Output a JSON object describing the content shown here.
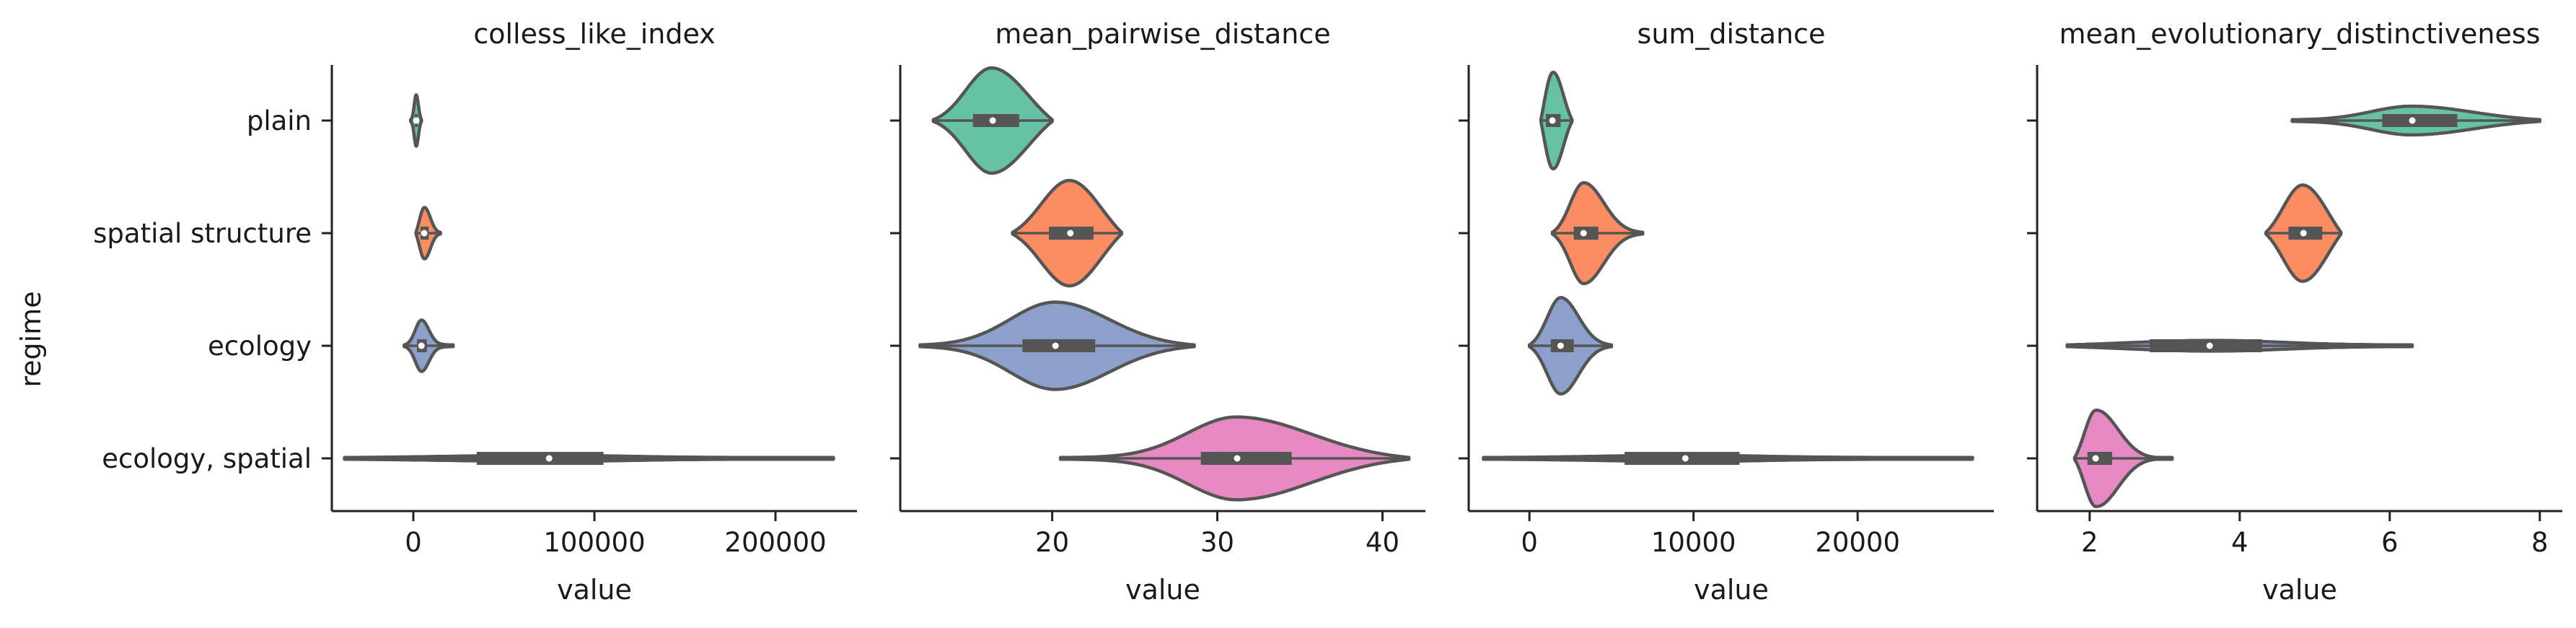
{
  "chart_data": {
    "type": "violin",
    "ylabel": "regime",
    "categories": [
      "plain",
      "spatial structure",
      "ecology",
      "ecology, spatial"
    ],
    "category_colors": [
      "#66c2a5",
      "#fc8d62",
      "#8da0cb",
      "#e78ac3"
    ],
    "panels": [
      {
        "title": "colless_like_index",
        "xlabel": "value",
        "xlim": [
          -45000,
          245000
        ],
        "xticks": [
          0,
          100000,
          200000
        ],
        "xtick_labels": [
          "0",
          "100000",
          "200000"
        ],
        "violins": [
          {
            "category": "plain",
            "min": -1500,
            "q1": 800,
            "median": 1600,
            "q3": 2500,
            "max": 4500,
            "maxwidth": 0.22
          },
          {
            "category": "spatial structure",
            "min": 1500,
            "q1": 4000,
            "median": 6000,
            "q3": 8500,
            "max": 15000,
            "maxwidth": 0.22
          },
          {
            "category": "ecology",
            "min": -5000,
            "q1": 2000,
            "median": 4500,
            "q3": 7500,
            "max": 22000,
            "maxwidth": 0.22
          },
          {
            "category": "ecology, spatial",
            "min": -38000,
            "q1": 35000,
            "median": 75000,
            "q3": 105000,
            "max": 232000,
            "maxwidth": 0.02
          }
        ]
      },
      {
        "title": "mean_pairwise_distance",
        "xlabel": "value",
        "xlim": [
          10.8,
          42.6
        ],
        "xticks": [
          20,
          30,
          40
        ],
        "xtick_labels": [
          "20",
          "30",
          "40"
        ],
        "violins": [
          {
            "category": "plain",
            "min": 12.8,
            "q1": 15.2,
            "median": 16.4,
            "q3": 18.0,
            "max": 20.0,
            "maxwidth": 0.46
          },
          {
            "category": "spatial structure",
            "min": 17.6,
            "q1": 19.8,
            "median": 21.1,
            "q3": 22.5,
            "max": 24.2,
            "maxwidth": 0.46
          },
          {
            "category": "ecology",
            "min": 12.0,
            "q1": 18.2,
            "median": 20.2,
            "q3": 22.6,
            "max": 28.6,
            "maxwidth": 0.38
          },
          {
            "category": "ecology, spatial",
            "min": 20.5,
            "q1": 29.0,
            "median": 31.2,
            "q3": 34.5,
            "max": 41.6,
            "maxwidth": 0.36
          }
        ]
      },
      {
        "title": "sum_distance",
        "xlabel": "value",
        "xlim": [
          -3700,
          28300
        ],
        "xticks": [
          0,
          10000,
          20000
        ],
        "xtick_labels": [
          "0",
          "10000",
          "20000"
        ],
        "violins": [
          {
            "category": "plain",
            "min": 700,
            "q1": 1000,
            "median": 1400,
            "q3": 1900,
            "max": 2600,
            "maxwidth": 0.42
          },
          {
            "category": "spatial structure",
            "min": 1400,
            "q1": 2700,
            "median": 3300,
            "q3": 4200,
            "max": 6900,
            "maxwidth": 0.44
          },
          {
            "category": "ecology",
            "min": 0,
            "q1": 1300,
            "median": 1900,
            "q3": 2700,
            "max": 5000,
            "maxwidth": 0.42
          },
          {
            "category": "ecology, spatial",
            "min": -2800,
            "q1": 5800,
            "median": 9500,
            "q3": 12800,
            "max": 27000,
            "maxwidth": 0.02
          }
        ]
      },
      {
        "title": "mean_evolutionary_distinctiveness",
        "xlabel": "value",
        "xlim": [
          1.3,
          8.3
        ],
        "xticks": [
          2,
          4,
          6,
          8
        ],
        "xtick_labels": [
          "2",
          "4",
          "6",
          "8"
        ],
        "violins": [
          {
            "category": "plain",
            "min": 4.7,
            "q1": 5.9,
            "median": 6.3,
            "q3": 6.9,
            "max": 8.0,
            "maxwidth": 0.12
          },
          {
            "category": "spatial structure",
            "min": 4.35,
            "q1": 4.65,
            "median": 4.85,
            "q3": 5.1,
            "max": 5.35,
            "maxwidth": 0.42
          },
          {
            "category": "ecology",
            "min": 1.7,
            "q1": 2.8,
            "median": 3.6,
            "q3": 4.3,
            "max": 6.3,
            "maxwidth": 0.04
          },
          {
            "category": "ecology, spatial",
            "min": 1.8,
            "q1": 1.97,
            "median": 2.08,
            "q3": 2.3,
            "max": 3.1,
            "maxwidth": 0.42
          }
        ]
      }
    ]
  }
}
